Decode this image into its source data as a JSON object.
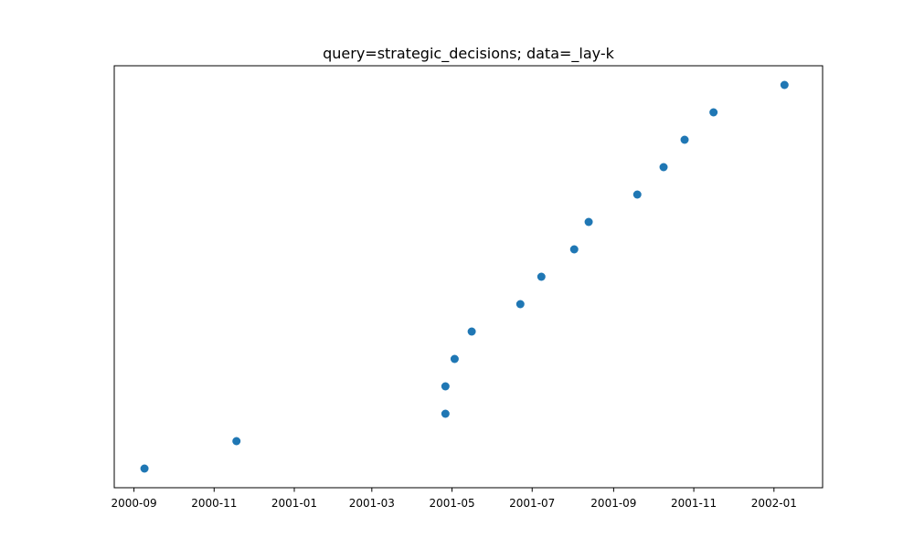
{
  "chart_data": {
    "type": "scatter",
    "title": "query=strategic_decisions; data=_lay-k",
    "xlabel": "",
    "ylabel": "",
    "x_axis_type": "date",
    "xlim": [
      "2000-08-17",
      "2002-02-07"
    ],
    "ylim": [
      -0.7,
      14.7
    ],
    "y_ticks_visible": false,
    "grid": false,
    "legend": "none",
    "marker_color": "#1f77b4",
    "x_ticks": [
      "2000-09",
      "2000-11",
      "2001-01",
      "2001-03",
      "2001-05",
      "2001-07",
      "2001-09",
      "2001-11",
      "2002-01"
    ],
    "points": [
      {
        "x": "2000-09-09",
        "y": 0
      },
      {
        "x": "2000-11-18",
        "y": 1
      },
      {
        "x": "2001-04-26",
        "y": 2
      },
      {
        "x": "2001-04-26",
        "y": 3
      },
      {
        "x": "2001-05-03",
        "y": 4
      },
      {
        "x": "2001-05-16",
        "y": 5
      },
      {
        "x": "2001-06-22",
        "y": 6
      },
      {
        "x": "2001-07-08",
        "y": 7
      },
      {
        "x": "2001-08-02",
        "y": 8
      },
      {
        "x": "2001-08-13",
        "y": 9
      },
      {
        "x": "2001-09-19",
        "y": 10
      },
      {
        "x": "2001-10-09",
        "y": 11
      },
      {
        "x": "2001-10-25",
        "y": 12
      },
      {
        "x": "2001-11-16",
        "y": 13
      },
      {
        "x": "2002-01-09",
        "y": 14
      }
    ]
  }
}
